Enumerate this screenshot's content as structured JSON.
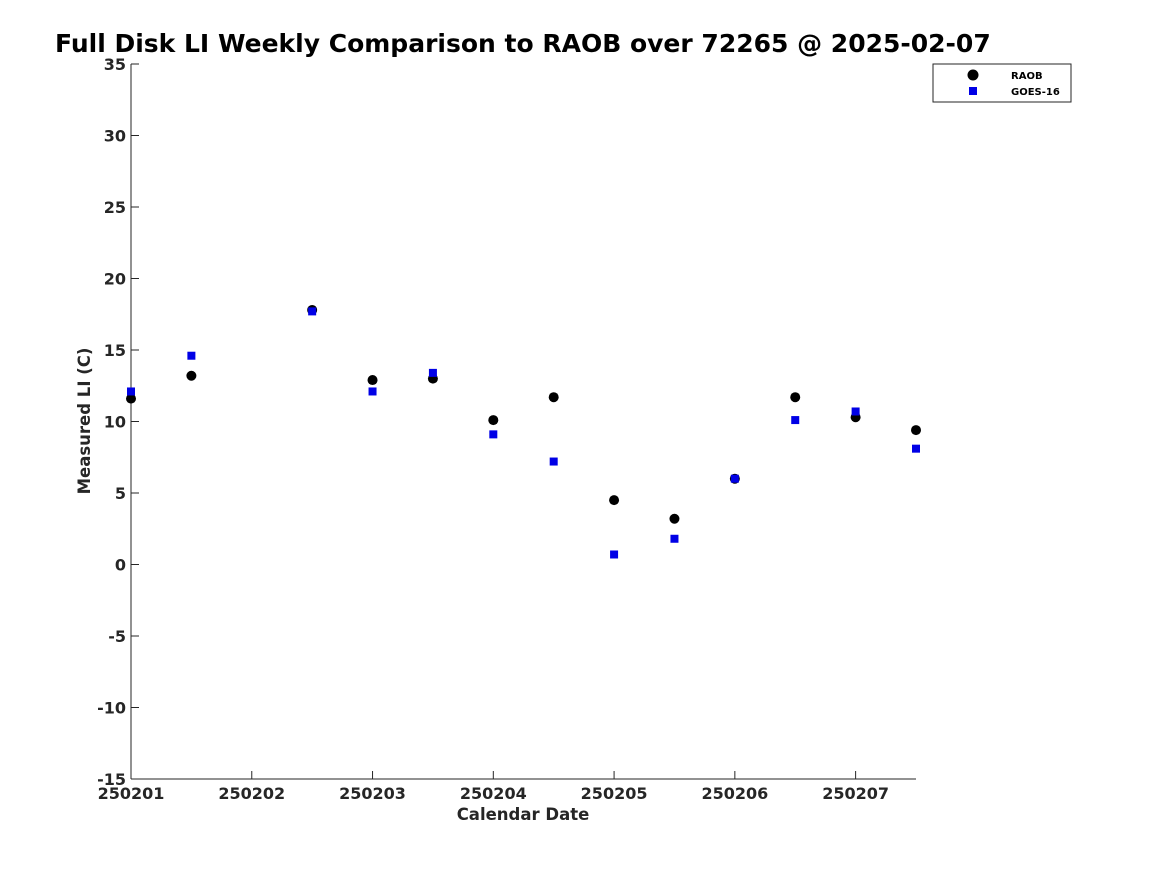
{
  "chart_data": {
    "type": "scatter",
    "title": "Full Disk LI Weekly Comparison to RAOB over 72265 @ 2025-02-07",
    "xlabel": "Calendar Date",
    "ylabel": "Measured LI (C)",
    "xlim": [
      250201,
      250207.5
    ],
    "ylim": [
      -15,
      35
    ],
    "x_ticks": [
      250201,
      250202,
      250203,
      250204,
      250205,
      250206,
      250207
    ],
    "x_tick_labels": [
      "250201",
      "250202",
      "250203",
      "250204",
      "250205",
      "250206",
      "250207"
    ],
    "y_ticks": [
      -15,
      -10,
      -5,
      0,
      5,
      10,
      15,
      20,
      25,
      30,
      35
    ],
    "y_tick_labels": [
      "-15",
      "-10",
      "-5",
      "0",
      "5",
      "10",
      "15",
      "20",
      "25",
      "30",
      "35"
    ],
    "grid": false,
    "legend_position": "top-right",
    "series": [
      {
        "name": "RAOB",
        "marker": "circle",
        "color": "#000000",
        "x": [
          250201,
          250201.5,
          250202.5,
          250203,
          250203.5,
          250204,
          250204.5,
          250205,
          250205.5,
          250206,
          250206.5,
          250207,
          250207.5
        ],
        "y": [
          11.6,
          13.2,
          17.8,
          12.9,
          13.0,
          10.1,
          11.7,
          4.5,
          3.2,
          6.0,
          11.7,
          10.3,
          9.4
        ]
      },
      {
        "name": "GOES-16",
        "marker": "square",
        "color": "#0000e6",
        "x": [
          250201,
          250201.5,
          250202.5,
          250203,
          250203.5,
          250204,
          250204.5,
          250205,
          250205.5,
          250206,
          250206.5,
          250207,
          250207.5
        ],
        "y": [
          12.1,
          14.6,
          17.7,
          12.1,
          13.4,
          9.1,
          7.2,
          0.7,
          1.8,
          6.0,
          10.1,
          10.7,
          8.1
        ]
      }
    ]
  }
}
